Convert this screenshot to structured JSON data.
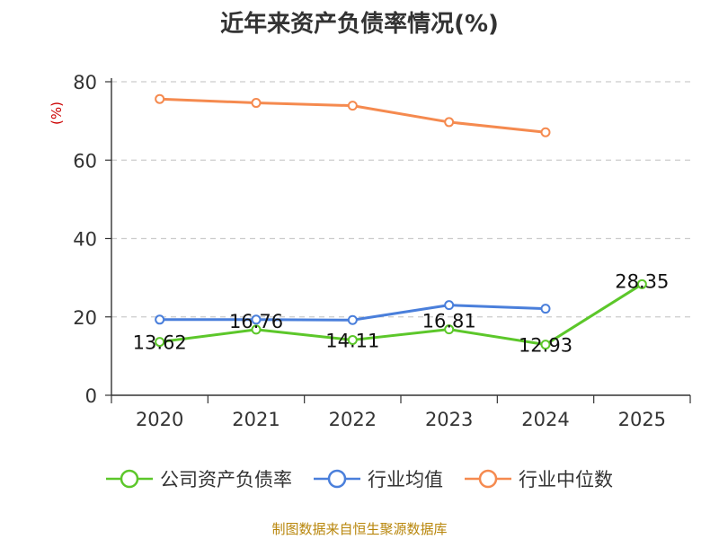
{
  "title": "近年来资产负债率情况(%)",
  "source": "制图数据来自恒生聚源数据库",
  "chart_data": {
    "type": "line",
    "title": "近年来资产负债率情况(%)",
    "ylabel": "(%)",
    "xlabel": "",
    "categories": [
      "2020",
      "2021",
      "2022",
      "2023",
      "2024",
      "2025"
    ],
    "ylim": [
      0,
      80
    ],
    "yticks": [
      0,
      20,
      40,
      60,
      80
    ],
    "grid": true,
    "legend_position": "bottom",
    "series": [
      {
        "name": "公司资产负债率",
        "color": "#5cc72a",
        "values": [
          13.62,
          16.76,
          14.11,
          16.81,
          12.93,
          28.35
        ],
        "labels": [
          "13.62",
          "16.76",
          "14.11",
          "16.81",
          "12.93",
          "28.35"
        ]
      },
      {
        "name": "行业均值",
        "color": "#4a7fdb",
        "values": [
          19.3,
          19.3,
          19.2,
          23.0,
          22.1,
          null
        ]
      },
      {
        "name": "行业中位数",
        "color": "#f58a4f",
        "values": [
          75.6,
          74.6,
          73.9,
          69.7,
          67.1,
          null
        ]
      }
    ]
  }
}
